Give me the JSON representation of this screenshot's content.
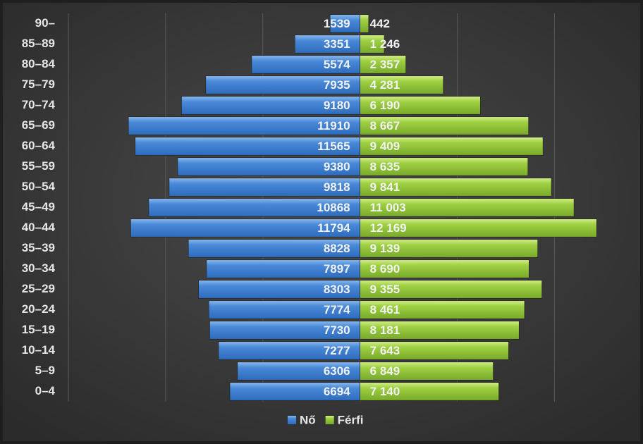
{
  "chart_data": {
    "type": "pyramid",
    "categories": [
      "90–",
      "85–89",
      "80–84",
      "75–79",
      "70–74",
      "65–69",
      "60–64",
      "55–59",
      "50–54",
      "45–49",
      "40–44",
      "35–39",
      "30–34",
      "25–29",
      "20–24",
      "15–19",
      "10–14",
      "5–9",
      "0–4"
    ],
    "series": [
      {
        "name": "Nő",
        "color": "#4a8ad8",
        "side": "left",
        "values": [
          1539,
          3351,
          5574,
          7935,
          9180,
          11910,
          11565,
          9380,
          9818,
          10868,
          11794,
          8828,
          7897,
          8303,
          7774,
          7730,
          7277,
          6306,
          6694
        ]
      },
      {
        "name": "Férfi",
        "color": "#9fd043",
        "side": "right",
        "values": [
          442,
          1246,
          2357,
          4281,
          6190,
          8667,
          9409,
          8635,
          9841,
          11003,
          12169,
          9139,
          8690,
          9355,
          8461,
          8181,
          7643,
          6849,
          7140
        ],
        "value_labels": [
          "442",
          "1 246",
          "2 357",
          "4 281",
          "6 190",
          "8 667",
          "9 409",
          "8 635",
          "9 841",
          "11 003",
          "12 169",
          "9 139",
          "8 690",
          "9 355",
          "8 461",
          "8 181",
          "7 643",
          "6 849",
          "7 140"
        ]
      }
    ],
    "xlim": [
      -15000,
      14300
    ],
    "xticks": [
      -15000,
      -10000,
      -5000,
      0,
      5000,
      10000
    ],
    "grid": true
  }
}
